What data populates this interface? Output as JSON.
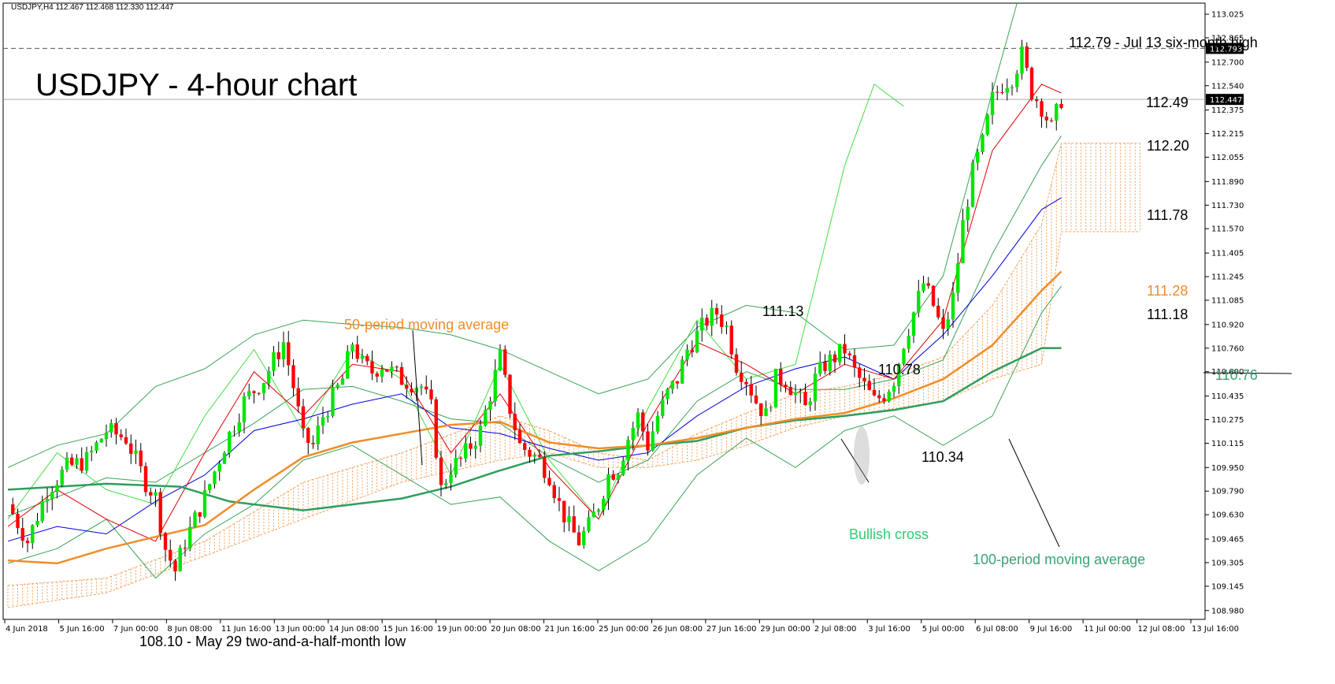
{
  "chart_data": {
    "type": "candlestick",
    "header": "USDJPY,H4  112.467 112.468 112.330 112.447",
    "title": "USDJPY - 4-hour chart",
    "ylim": [
      108.92,
      113.1
    ],
    "y_ticks": [
      "113.025",
      "112.865",
      "112.700",
      "112.540",
      "112.375",
      "112.215",
      "112.055",
      "111.890",
      "111.730",
      "111.570",
      "111.405",
      "111.245",
      "111.085",
      "110.920",
      "110.760",
      "110.600",
      "110.435",
      "110.275",
      "110.115",
      "109.950",
      "109.790",
      "109.630",
      "109.465",
      "109.305",
      "109.145",
      "108.980"
    ],
    "x_ticks": [
      "4 Jun 2018",
      "5 Jun 16:00",
      "7 Jun 00:00",
      "8 Jun 08:00",
      "11 Jun 16:00",
      "13 Jun 00:00",
      "14 Jun 08:00",
      "15 Jun 16:00",
      "19 Jun 00:00",
      "20 Jun 08:00",
      "21 Jun 16:00",
      "25 Jun 00:00",
      "26 Jun 08:00",
      "27 Jun 16:00",
      "29 Jun 00:00",
      "2 Jul 08:00",
      "3 Jul 16:00",
      "5 Jul 00:00",
      "6 Jul 08:00",
      "9 Jul 16:00",
      "11 Jul 00:00",
      "12 Jul 08:00",
      "13 Jul 16:00"
    ],
    "price_badges": [
      {
        "value": "112.793",
        "price": 112.793
      },
      {
        "value": "112.447",
        "price": 112.447
      }
    ],
    "close_path": [
      [
        0,
        109.7
      ],
      [
        4,
        109.45
      ],
      [
        8,
        109.8
      ],
      [
        12,
        109.95
      ],
      [
        16,
        110.0
      ],
      [
        20,
        110.2
      ],
      [
        24,
        110.15
      ],
      [
        28,
        109.85
      ],
      [
        30,
        109.75
      ],
      [
        32,
        109.4
      ],
      [
        34,
        109.25
      ],
      [
        36,
        109.45
      ],
      [
        40,
        109.75
      ],
      [
        44,
        110.1
      ],
      [
        48,
        110.4
      ],
      [
        52,
        110.55
      ],
      [
        56,
        110.8
      ],
      [
        58,
        110.5
      ],
      [
        60,
        110.15
      ],
      [
        62,
        110.1
      ],
      [
        64,
        110.3
      ],
      [
        68,
        110.55
      ],
      [
        70,
        110.8
      ],
      [
        72,
        110.65
      ],
      [
        74,
        110.6
      ],
      [
        76,
        110.65
      ],
      [
        80,
        110.55
      ],
      [
        84,
        110.5
      ],
      [
        86,
        110.35
      ],
      [
        88,
        109.8
      ],
      [
        90,
        109.95
      ],
      [
        92,
        110.0
      ],
      [
        94,
        110.1
      ],
      [
        96,
        110.2
      ],
      [
        98,
        110.45
      ],
      [
        100,
        110.7
      ],
      [
        102,
        110.35
      ],
      [
        104,
        110.1
      ],
      [
        106,
        110.05
      ],
      [
        108,
        110.0
      ],
      [
        110,
        109.9
      ],
      [
        112,
        109.7
      ],
      [
        114,
        109.55
      ],
      [
        116,
        109.45
      ],
      [
        118,
        109.55
      ],
      [
        120,
        109.7
      ],
      [
        122,
        109.9
      ],
      [
        124,
        109.95
      ],
      [
        126,
        110.15
      ],
      [
        128,
        110.3
      ],
      [
        130,
        110.1
      ],
      [
        132,
        110.3
      ],
      [
        134,
        110.45
      ],
      [
        136,
        110.55
      ],
      [
        138,
        110.75
      ],
      [
        140,
        110.85
      ],
      [
        142,
        110.95
      ],
      [
        144,
        111.0
      ],
      [
        146,
        110.9
      ],
      [
        148,
        110.65
      ],
      [
        150,
        110.55
      ],
      [
        152,
        110.4
      ],
      [
        154,
        110.3
      ],
      [
        156,
        110.55
      ],
      [
        158,
        110.55
      ],
      [
        160,
        110.45
      ],
      [
        162,
        110.35
      ],
      [
        164,
        110.55
      ],
      [
        166,
        110.65
      ],
      [
        168,
        110.7
      ],
      [
        170,
        110.75
      ],
      [
        172,
        110.6
      ],
      [
        174,
        110.5
      ],
      [
        176,
        110.4
      ],
      [
        178,
        110.45
      ],
      [
        180,
        110.55
      ],
      [
        182,
        110.8
      ],
      [
        184,
        111.0
      ],
      [
        186,
        111.2
      ],
      [
        188,
        111.05
      ],
      [
        190,
        110.85
      ],
      [
        192,
        111.1
      ],
      [
        194,
        111.6
      ],
      [
        196,
        111.95
      ],
      [
        198,
        112.15
      ],
      [
        200,
        112.45
      ],
      [
        202,
        112.55
      ],
      [
        204,
        112.6
      ],
      [
        206,
        112.75
      ],
      [
        208,
        112.5
      ],
      [
        210,
        112.4
      ],
      [
        212,
        112.25
      ],
      [
        214,
        112.45
      ]
    ],
    "indicators": {
      "ma50": [
        [
          0,
          109.32
        ],
        [
          10,
          109.3
        ],
        [
          20,
          109.4
        ],
        [
          30,
          109.48
        ],
        [
          40,
          109.56
        ],
        [
          50,
          109.8
        ],
        [
          60,
          110.02
        ],
        [
          70,
          110.12
        ],
        [
          80,
          110.18
        ],
        [
          90,
          110.24
        ],
        [
          100,
          110.26
        ],
        [
          110,
          110.12
        ],
        [
          120,
          110.08
        ],
        [
          130,
          110.1
        ],
        [
          140,
          110.15
        ],
        [
          150,
          110.22
        ],
        [
          160,
          110.28
        ],
        [
          170,
          110.32
        ],
        [
          180,
          110.42
        ],
        [
          190,
          110.55
        ],
        [
          200,
          110.78
        ],
        [
          210,
          111.15
        ],
        [
          214,
          111.28
        ]
      ],
      "ma100": [
        [
          0,
          109.8
        ],
        [
          20,
          109.84
        ],
        [
          35,
          109.82
        ],
        [
          45,
          109.72
        ],
        [
          50,
          109.7
        ],
        [
          60,
          109.66
        ],
        [
          70,
          109.7
        ],
        [
          80,
          109.74
        ],
        [
          90,
          109.82
        ],
        [
          100,
          109.93
        ],
        [
          110,
          110.03
        ],
        [
          120,
          110.06
        ],
        [
          130,
          110.1
        ],
        [
          140,
          110.13
        ],
        [
          150,
          110.22
        ],
        [
          160,
          110.27
        ],
        [
          170,
          110.3
        ],
        [
          180,
          110.34
        ],
        [
          190,
          110.4
        ],
        [
          200,
          110.6
        ],
        [
          210,
          110.76
        ],
        [
          214,
          110.76
        ]
      ],
      "bb_upper": [
        [
          0,
          109.95
        ],
        [
          10,
          110.1
        ],
        [
          20,
          110.18
        ],
        [
          30,
          110.5
        ],
        [
          40,
          110.62
        ],
        [
          50,
          110.85
        ],
        [
          60,
          110.95
        ],
        [
          70,
          110.92
        ],
        [
          80,
          110.9
        ],
        [
          90,
          110.85
        ],
        [
          100,
          110.75
        ],
        [
          110,
          110.6
        ],
        [
          120,
          110.45
        ],
        [
          130,
          110.55
        ],
        [
          140,
          110.9
        ],
        [
          150,
          111.05
        ],
        [
          160,
          111.0
        ],
        [
          170,
          110.75
        ],
        [
          180,
          110.78
        ],
        [
          190,
          111.25
        ],
        [
          200,
          112.5
        ],
        [
          205,
          113.1
        ]
      ],
      "bb_lower": [
        [
          0,
          109.3
        ],
        [
          10,
          109.4
        ],
        [
          20,
          109.6
        ],
        [
          30,
          109.2
        ],
        [
          40,
          109.5
        ],
        [
          50,
          109.7
        ],
        [
          60,
          110.0
        ],
        [
          70,
          110.1
        ],
        [
          80,
          109.9
        ],
        [
          90,
          109.7
        ],
        [
          100,
          109.75
        ],
        [
          110,
          109.45
        ],
        [
          120,
          109.25
        ],
        [
          130,
          109.45
        ],
        [
          140,
          109.9
        ],
        [
          150,
          110.15
        ],
        [
          160,
          109.95
        ],
        [
          170,
          110.2
        ],
        [
          180,
          110.3
        ],
        [
          190,
          110.1
        ],
        [
          200,
          110.3
        ],
        [
          210,
          111.0
        ],
        [
          214,
          111.18
        ]
      ],
      "bb_mid": [
        [
          0,
          109.62
        ],
        [
          10,
          109.75
        ],
        [
          20,
          109.88
        ],
        [
          30,
          109.85
        ],
        [
          40,
          110.05
        ],
        [
          50,
          110.25
        ],
        [
          60,
          110.48
        ],
        [
          70,
          110.5
        ],
        [
          80,
          110.4
        ],
        [
          90,
          110.28
        ],
        [
          100,
          110.25
        ],
        [
          110,
          110.02
        ],
        [
          120,
          109.85
        ],
        [
          130,
          110.0
        ],
        [
          140,
          110.4
        ],
        [
          150,
          110.6
        ],
        [
          160,
          110.48
        ],
        [
          170,
          110.48
        ],
        [
          180,
          110.55
        ],
        [
          190,
          110.68
        ],
        [
          200,
          111.4
        ],
        [
          210,
          112.0
        ],
        [
          214,
          112.2
        ]
      ],
      "tenkan": [
        [
          0,
          109.55
        ],
        [
          10,
          109.8
        ],
        [
          20,
          109.6
        ],
        [
          30,
          109.45
        ],
        [
          40,
          110.05
        ],
        [
          50,
          110.6
        ],
        [
          60,
          110.3
        ],
        [
          70,
          110.65
        ],
        [
          80,
          110.6
        ],
        [
          90,
          110.05
        ],
        [
          100,
          110.45
        ],
        [
          110,
          109.95
        ],
        [
          120,
          109.6
        ],
        [
          130,
          110.25
        ],
        [
          140,
          110.8
        ],
        [
          150,
          110.65
        ],
        [
          160,
          110.45
        ],
        [
          170,
          110.65
        ],
        [
          180,
          110.55
        ],
        [
          190,
          110.95
        ],
        [
          200,
          112.1
        ],
        [
          210,
          112.55
        ],
        [
          214,
          112.49
        ]
      ],
      "kijun": [
        [
          0,
          109.45
        ],
        [
          10,
          109.55
        ],
        [
          20,
          109.5
        ],
        [
          30,
          109.72
        ],
        [
          40,
          109.9
        ],
        [
          50,
          110.2
        ],
        [
          60,
          110.28
        ],
        [
          70,
          110.38
        ],
        [
          80,
          110.45
        ],
        [
          90,
          110.22
        ],
        [
          100,
          110.18
        ],
        [
          110,
          110.08
        ],
        [
          120,
          110.0
        ],
        [
          130,
          110.05
        ],
        [
          140,
          110.3
        ],
        [
          150,
          110.5
        ],
        [
          160,
          110.62
        ],
        [
          170,
          110.7
        ],
        [
          180,
          110.55
        ],
        [
          190,
          110.85
        ],
        [
          200,
          111.25
        ],
        [
          210,
          111.7
        ],
        [
          214,
          111.78
        ]
      ],
      "chikou": [
        [
          0,
          109.6
        ],
        [
          10,
          110.05
        ],
        [
          20,
          109.8
        ],
        [
          30,
          109.7
        ],
        [
          40,
          110.3
        ],
        [
          50,
          110.75
        ],
        [
          60,
          110.2
        ],
        [
          70,
          110.75
        ],
        [
          80,
          110.55
        ],
        [
          90,
          109.9
        ],
        [
          100,
          110.65
        ],
        [
          110,
          110.0
        ],
        [
          120,
          109.6
        ],
        [
          130,
          110.35
        ],
        [
          140,
          110.95
        ],
        [
          150,
          110.55
        ],
        [
          160,
          110.65
        ],
        [
          170,
          112.0
        ],
        [
          176,
          112.55
        ],
        [
          182,
          112.4
        ]
      ],
      "cloud_a": [
        [
          0,
          109.15
        ],
        [
          20,
          109.2
        ],
        [
          40,
          109.45
        ],
        [
          60,
          109.85
        ],
        [
          80,
          110.05
        ],
        [
          100,
          110.3
        ],
        [
          110,
          110.2
        ],
        [
          120,
          110.05
        ],
        [
          130,
          110.0
        ],
        [
          140,
          110.18
        ],
        [
          150,
          110.32
        ],
        [
          160,
          110.45
        ],
        [
          170,
          110.5
        ],
        [
          180,
          110.58
        ],
        [
          190,
          110.7
        ],
        [
          200,
          111.05
        ],
        [
          210,
          111.6
        ],
        [
          214,
          112.15
        ],
        [
          230,
          112.15
        ]
      ],
      "cloud_b": [
        [
          0,
          109.0
        ],
        [
          20,
          109.1
        ],
        [
          40,
          109.35
        ],
        [
          60,
          109.6
        ],
        [
          80,
          109.85
        ],
        [
          100,
          110.0
        ],
        [
          110,
          110.05
        ],
        [
          120,
          109.95
        ],
        [
          130,
          109.95
        ],
        [
          140,
          110.0
        ],
        [
          150,
          110.1
        ],
        [
          160,
          110.22
        ],
        [
          170,
          110.3
        ],
        [
          180,
          110.35
        ],
        [
          190,
          110.4
        ],
        [
          200,
          110.55
        ],
        [
          210,
          110.65
        ],
        [
          214,
          111.55
        ],
        [
          230,
          111.55
        ]
      ]
    },
    "annotations": [
      {
        "text": "112.79 - Jul 13 six-month high",
        "color": "#000000"
      },
      {
        "text": "112.49",
        "color": "#000000"
      },
      {
        "text": "112.20",
        "color": "#000000"
      },
      {
        "text": "111.78",
        "color": "#000000"
      },
      {
        "text": "111.28",
        "color": "#f28c28"
      },
      {
        "text": "111.18",
        "color": "#000000"
      },
      {
        "text": "110.76",
        "color": "#3aa374"
      },
      {
        "text": "111.13",
        "color": "#000000"
      },
      {
        "text": "110.78",
        "color": "#000000"
      },
      {
        "text": "110.34",
        "color": "#000000"
      },
      {
        "text": "50-period moving average",
        "color": "#f28c28"
      },
      {
        "text": "Bullish cross",
        "color": "#2ecc71"
      },
      {
        "text": "100-period moving average",
        "color": "#3aa374"
      },
      {
        "text": "108.10 - May 29 two-and-a-half-month low",
        "color": "#000000"
      }
    ],
    "colors": {
      "bull": "#00e600",
      "bear": "#ff0000",
      "ma50": "#f28c28",
      "ma100": "#2e9d5e",
      "bollinger": "#3aa356",
      "tenkan": "#e00000",
      "kijun": "#0000e0",
      "chikou": "#44dd44",
      "cloud": "#f4a460",
      "grid": "#d8d8d8"
    }
  }
}
